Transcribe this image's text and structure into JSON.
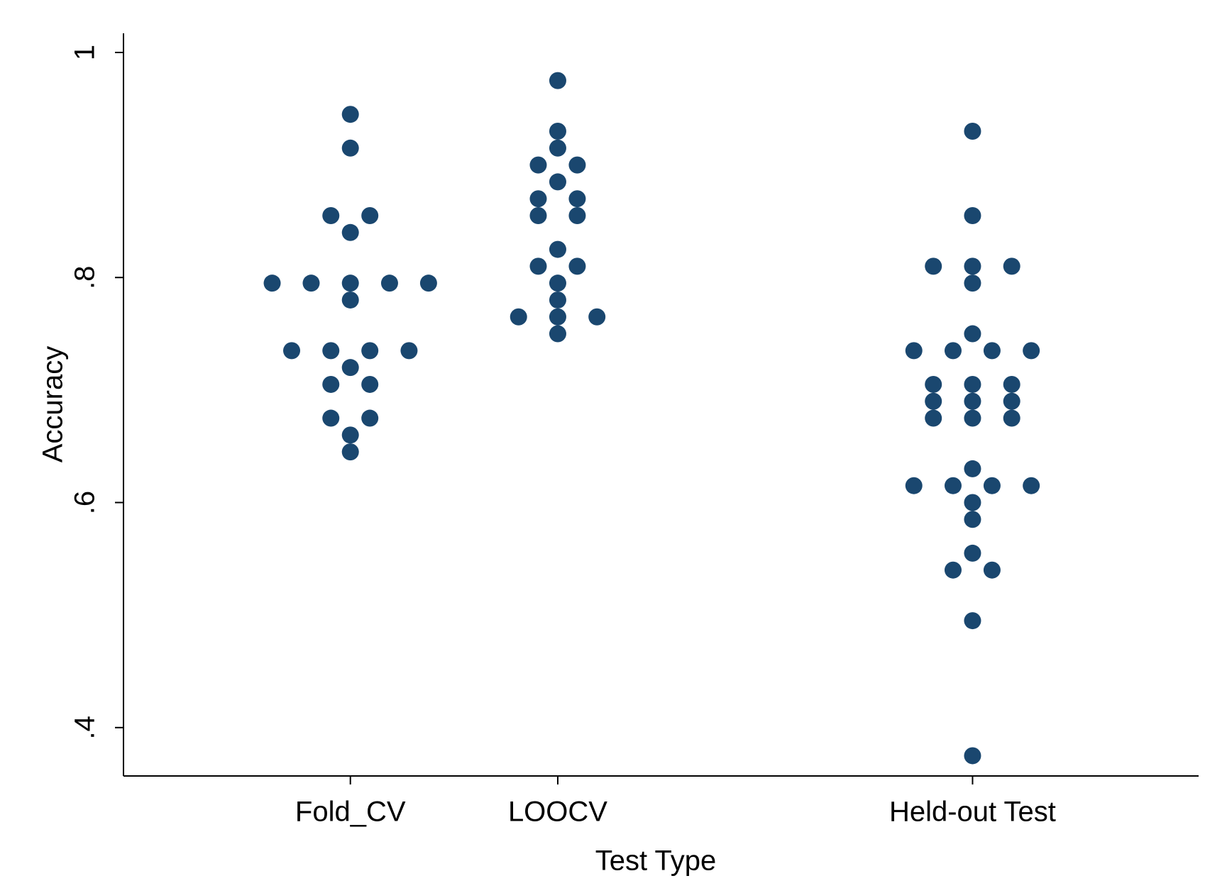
{
  "chart_data": {
    "type": "scatter",
    "xlabel": "Test Type",
    "ylabel": "Accuracy",
    "xlim": [
      -0.094,
      5.09
    ],
    "ylim": [
      0.357,
      1.017
    ],
    "xticks": [
      {
        "value": 1,
        "label": "Fold_CV"
      },
      {
        "value": 2,
        "label": "LOOCV"
      },
      {
        "value": 4,
        "label": "Held-out Test"
      }
    ],
    "yticks": [
      {
        "value": 0.4,
        "label": ".4"
      },
      {
        "value": 0.6,
        "label": ".6"
      },
      {
        "value": 0.8,
        "label": ".8"
      },
      1
    ],
    "grid": false,
    "series": [
      {
        "color": "#1a476f",
        "x": [
          1,
          1,
          0.906,
          1.094,
          1,
          0.623,
          0.811,
          1,
          1.189,
          1.377,
          1,
          0.717,
          0.906,
          1.094,
          1.283,
          1,
          0.906,
          1.094,
          0.906,
          1.094,
          1,
          1
        ],
        "values": [
          0.945,
          0.915,
          0.855,
          0.855,
          0.84,
          0.795,
          0.795,
          0.795,
          0.795,
          0.795,
          0.78,
          0.735,
          0.735,
          0.735,
          0.735,
          0.72,
          0.705,
          0.705,
          0.675,
          0.675,
          0.66,
          0.645
        ]
      },
      {
        "color": "#1a476f",
        "x": [
          2,
          2,
          2,
          1.906,
          2.094,
          2,
          1.906,
          2.094,
          1.906,
          2.094,
          2,
          1.906,
          2.094,
          2,
          2,
          1.811,
          2,
          2.189,
          2
        ],
        "values": [
          0.975,
          0.93,
          0.915,
          0.9,
          0.9,
          0.885,
          0.87,
          0.87,
          0.855,
          0.855,
          0.825,
          0.81,
          0.81,
          0.795,
          0.78,
          0.765,
          0.765,
          0.765,
          0.75
        ]
      },
      {
        "color": "#1a476f",
        "x": [
          4,
          4,
          3.811,
          4,
          4.189,
          4,
          4,
          3.717,
          3.906,
          4.094,
          4.283,
          3.811,
          4,
          4.189,
          3.811,
          4,
          4.189,
          3.811,
          4,
          4.189,
          4,
          3.717,
          3.906,
          4.094,
          4.283,
          4,
          4,
          4,
          3.906,
          4.094,
          4,
          4
        ],
        "values": [
          0.93,
          0.855,
          0.81,
          0.81,
          0.81,
          0.795,
          0.75,
          0.735,
          0.735,
          0.735,
          0.735,
          0.705,
          0.705,
          0.705,
          0.69,
          0.69,
          0.69,
          0.675,
          0.675,
          0.675,
          0.63,
          0.615,
          0.615,
          0.615,
          0.615,
          0.6,
          0.585,
          0.555,
          0.54,
          0.54,
          0.495,
          0.375
        ]
      }
    ]
  }
}
